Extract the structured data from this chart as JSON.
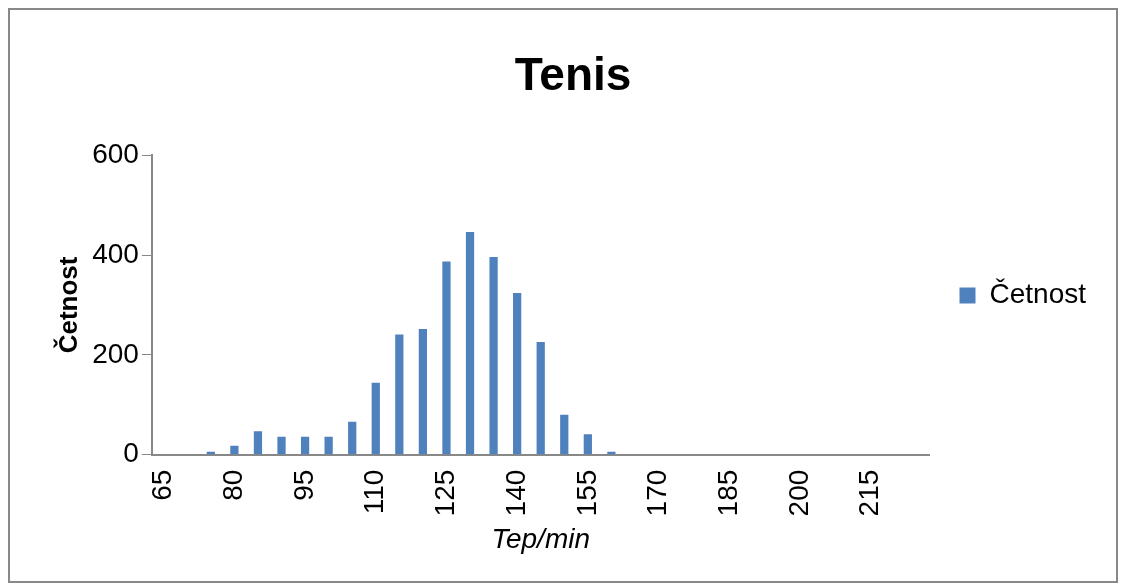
{
  "chart_data": {
    "type": "bar",
    "title": "Tenis",
    "xlabel": "Tep/min",
    "ylabel": "Četnost",
    "categories": [
      "65",
      null,
      null,
      "80",
      null,
      null,
      "95",
      null,
      null,
      "110",
      null,
      null,
      "125",
      null,
      null,
      "140",
      null,
      null,
      "155",
      null,
      null,
      "170",
      null,
      null,
      "185",
      null,
      null,
      "200",
      null,
      null,
      "215",
      null,
      null
    ],
    "series": [
      {
        "name": "Četnost",
        "color": "#4f81bd",
        "values": [
          0,
          0,
          6,
          18,
          47,
          36,
          36,
          36,
          66,
          144,
          241,
          252,
          387,
          446,
          396,
          324,
          226,
          80,
          41,
          6,
          0,
          0,
          0,
          0,
          0,
          0,
          0,
          0,
          0,
          0,
          0,
          0,
          0
        ]
      }
    ],
    "ylim": [
      0,
      600
    ],
    "yticks": [
      0,
      200,
      400,
      600
    ],
    "grid": false,
    "legend": "right"
  }
}
